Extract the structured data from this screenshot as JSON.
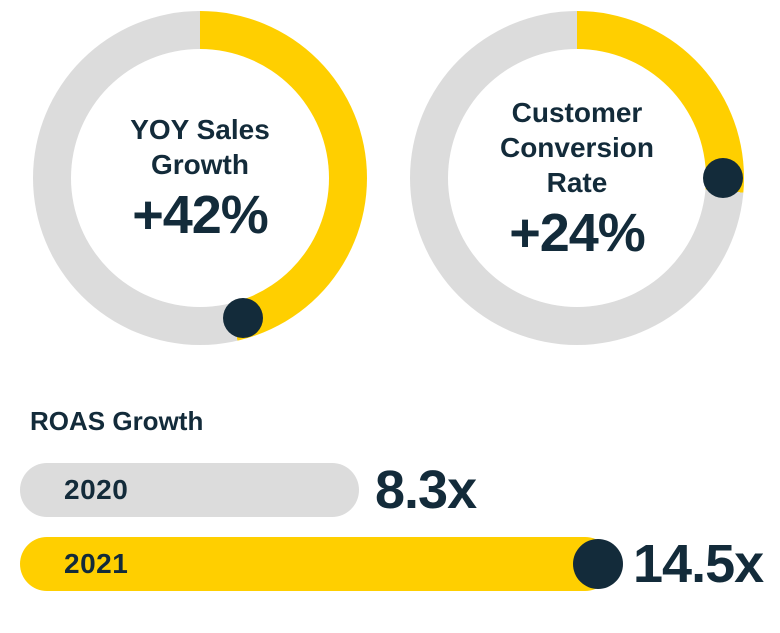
{
  "palette": {
    "yellow": "#FFCF00",
    "navy": "#132B3A",
    "gray": "#DCDCDC",
    "background": "#FFFFFF"
  },
  "chart_data": [
    {
      "type": "donut",
      "title": "YOY Sales Growth",
      "title_lines": [
        "YOY Sales",
        "Growth"
      ],
      "value_label": "+42%",
      "value_pct": 42,
      "arc_color_key": "yellow",
      "track_color_key": "gray",
      "dot_color_key": "navy",
      "arc_start_deg": 0,
      "arc_end_deg": 167,
      "dot_deg": 163
    },
    {
      "type": "donut",
      "title": "Customer Conversion Rate",
      "title_lines": [
        "Customer",
        "Conversion",
        "Rate"
      ],
      "value_label": "+24%",
      "value_pct": 24,
      "arc_color_key": "yellow",
      "track_color_key": "gray",
      "dot_color_key": "navy",
      "arc_start_deg": 0,
      "arc_end_deg": 95,
      "dot_deg": 90
    },
    {
      "type": "bar",
      "title": "ROAS Growth",
      "orientation": "horizontal",
      "categories": [
        "2020",
        "2021"
      ],
      "values": [
        8.3,
        14.5
      ],
      "value_labels": [
        "8.3x",
        "14.5x"
      ],
      "bar_color_keys": [
        "gray",
        "yellow"
      ],
      "endpoint_dot_category": "2021",
      "xlim": [
        0,
        14.5
      ],
      "grid": false,
      "legend": false
    }
  ]
}
